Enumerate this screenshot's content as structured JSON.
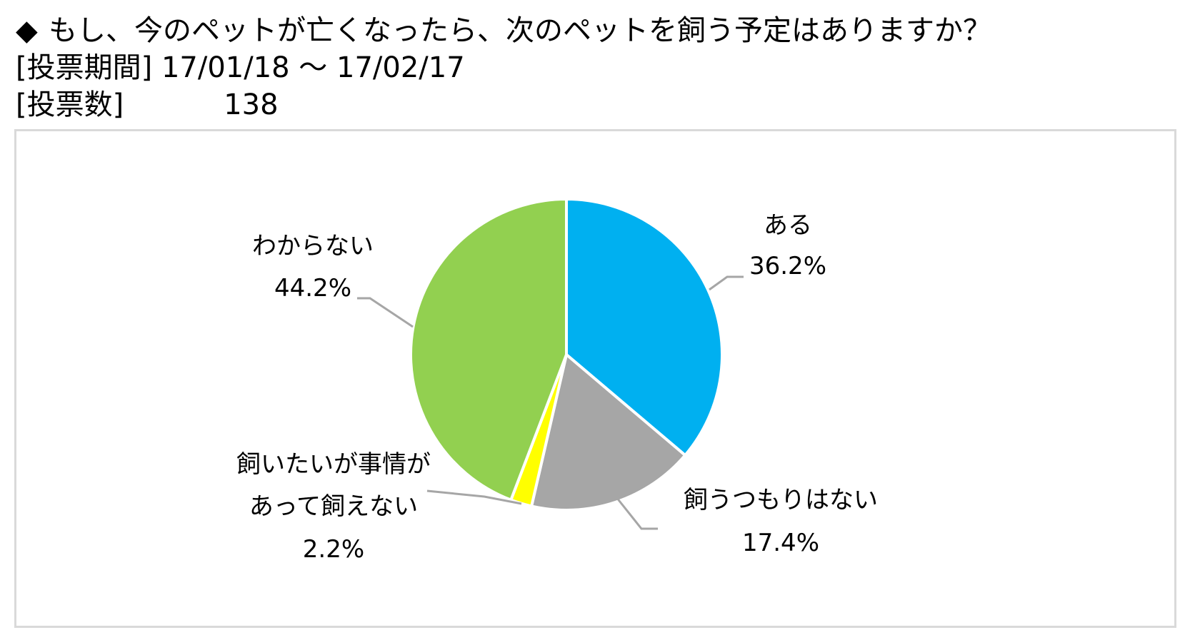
{
  "header": {
    "bullet": "◆",
    "question": "もし、今のペットが亡くなったら、次のペットを飼う予定はありますか？",
    "period_label": "[投票期間]",
    "period_value": "17/01/18 ～ 17/02/17",
    "votes_label": "[投票数]",
    "votes_value": "138"
  },
  "chart_data": {
    "type": "pie",
    "start_angle_deg": 0,
    "direction": "clockwise",
    "slices": [
      {
        "label": "ある",
        "value": 36.2,
        "value_label": "36.2%",
        "color": "#00B0F0"
      },
      {
        "label": "飼うつもりはない",
        "value": 17.4,
        "value_label": "17.4%",
        "color": "#A6A6A6"
      },
      {
        "label_lines": [
          "飼いたいが事情が",
          "あって飼えない"
        ],
        "value": 2.2,
        "value_label": "2.2%",
        "color": "#FFFF00"
      },
      {
        "label": "わからない",
        "value": 44.2,
        "value_label": "44.2%",
        "color": "#92D050"
      }
    ],
    "leader_line_color": "#A6A6A6",
    "separator_color": "#FFFFFF"
  }
}
